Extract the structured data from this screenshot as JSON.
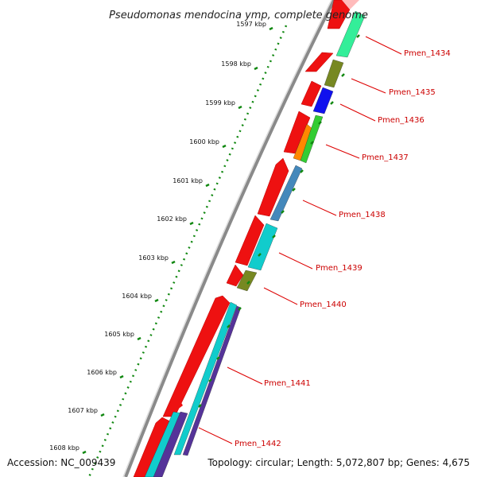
{
  "title": "Pseudomonas mendocina ymp, complete genome",
  "accession": "Accession: NC_009439",
  "summary": "Topology: circular; Length: 5,072,807 bp; Genes: 4,675",
  "kbp_ticks": [
    {
      "label": "1597 kbp"
    },
    {
      "label": "1598 kbp"
    },
    {
      "label": "1599 kbp"
    },
    {
      "label": "1600 kbp"
    },
    {
      "label": "1601 kbp"
    },
    {
      "label": "1602 kbp"
    },
    {
      "label": "1603 kbp"
    },
    {
      "label": "1604 kbp"
    },
    {
      "label": "1605 kbp"
    },
    {
      "label": "1606 kbp"
    },
    {
      "label": "1607 kbp"
    },
    {
      "label": "1608 kbp"
    }
  ],
  "gene_labels": [
    {
      "name": "Pmen_1434"
    },
    {
      "name": "Pmen_1435"
    },
    {
      "name": "Pmen_1436"
    },
    {
      "name": "Pmen_1437"
    },
    {
      "name": "Pmen_1438"
    },
    {
      "name": "Pmen_1439"
    },
    {
      "name": "Pmen_1440"
    },
    {
      "name": "Pmen_1441"
    },
    {
      "name": "Pmen_1442"
    }
  ],
  "colors": {
    "cds": "#ee1111",
    "backbone": "#888888",
    "tick_dots": "#118811",
    "label_line": "#dd0000",
    "label_text": "#cc0000",
    "feature_palette": [
      "#33ee99",
      "#778822",
      "#1111ee",
      "#ff8800",
      "#33cc33",
      "#4488bb",
      "#11cccc",
      "#553399"
    ]
  }
}
